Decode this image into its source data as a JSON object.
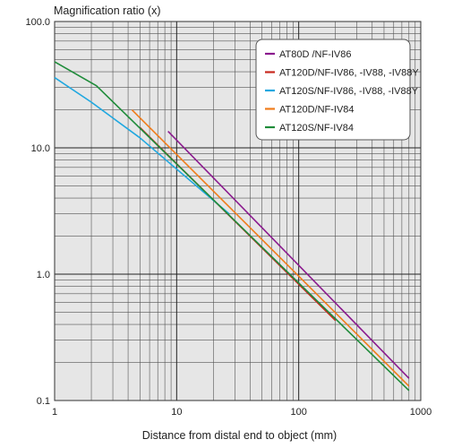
{
  "chart_data": {
    "type": "line",
    "title": "",
    "xlabel": "Distance from distal end to object (mm)",
    "ylabel": "Magnification ratio (x)",
    "x_scale": "log",
    "y_scale": "log",
    "xlim": [
      1,
      1000
    ],
    "ylim": [
      0.1,
      100
    ],
    "grid": true,
    "legend_position": "top-right",
    "plot_background": "#e6e6e6",
    "x_tick_labels": [
      "1",
      "10",
      "100",
      "1000"
    ],
    "y_tick_labels": [
      "0.1",
      "1.0",
      "10.0",
      "100.0"
    ],
    "series": [
      {
        "name": "AT80D /NF-IV86",
        "color": "#8b1a8e",
        "x": [
          8.5,
          800
        ],
        "y": [
          13.5,
          0.15
        ]
      },
      {
        "name": "AT120D/NF-IV86, -IV88, -IV88Y",
        "color": "#c8281e",
        "x": [
          5,
          200
        ],
        "y": [
          14.5,
          0.43
        ]
      },
      {
        "name": "AT120S/NF-IV86, -IV88, -IV88Y",
        "color": "#20a8e0",
        "x": [
          1,
          2,
          5,
          27
        ],
        "y": [
          36,
          23,
          12,
          3
        ]
      },
      {
        "name": "AT120D/NF-IV84",
        "color": "#f07c1a",
        "x": [
          4.3,
          800
        ],
        "y": [
          20,
          0.13
        ]
      },
      {
        "name": "AT120S/NF-IV84",
        "color": "#1f8c3a",
        "x": [
          1,
          2.2,
          800
        ],
        "y": [
          48,
          31,
          0.12
        ]
      }
    ]
  }
}
